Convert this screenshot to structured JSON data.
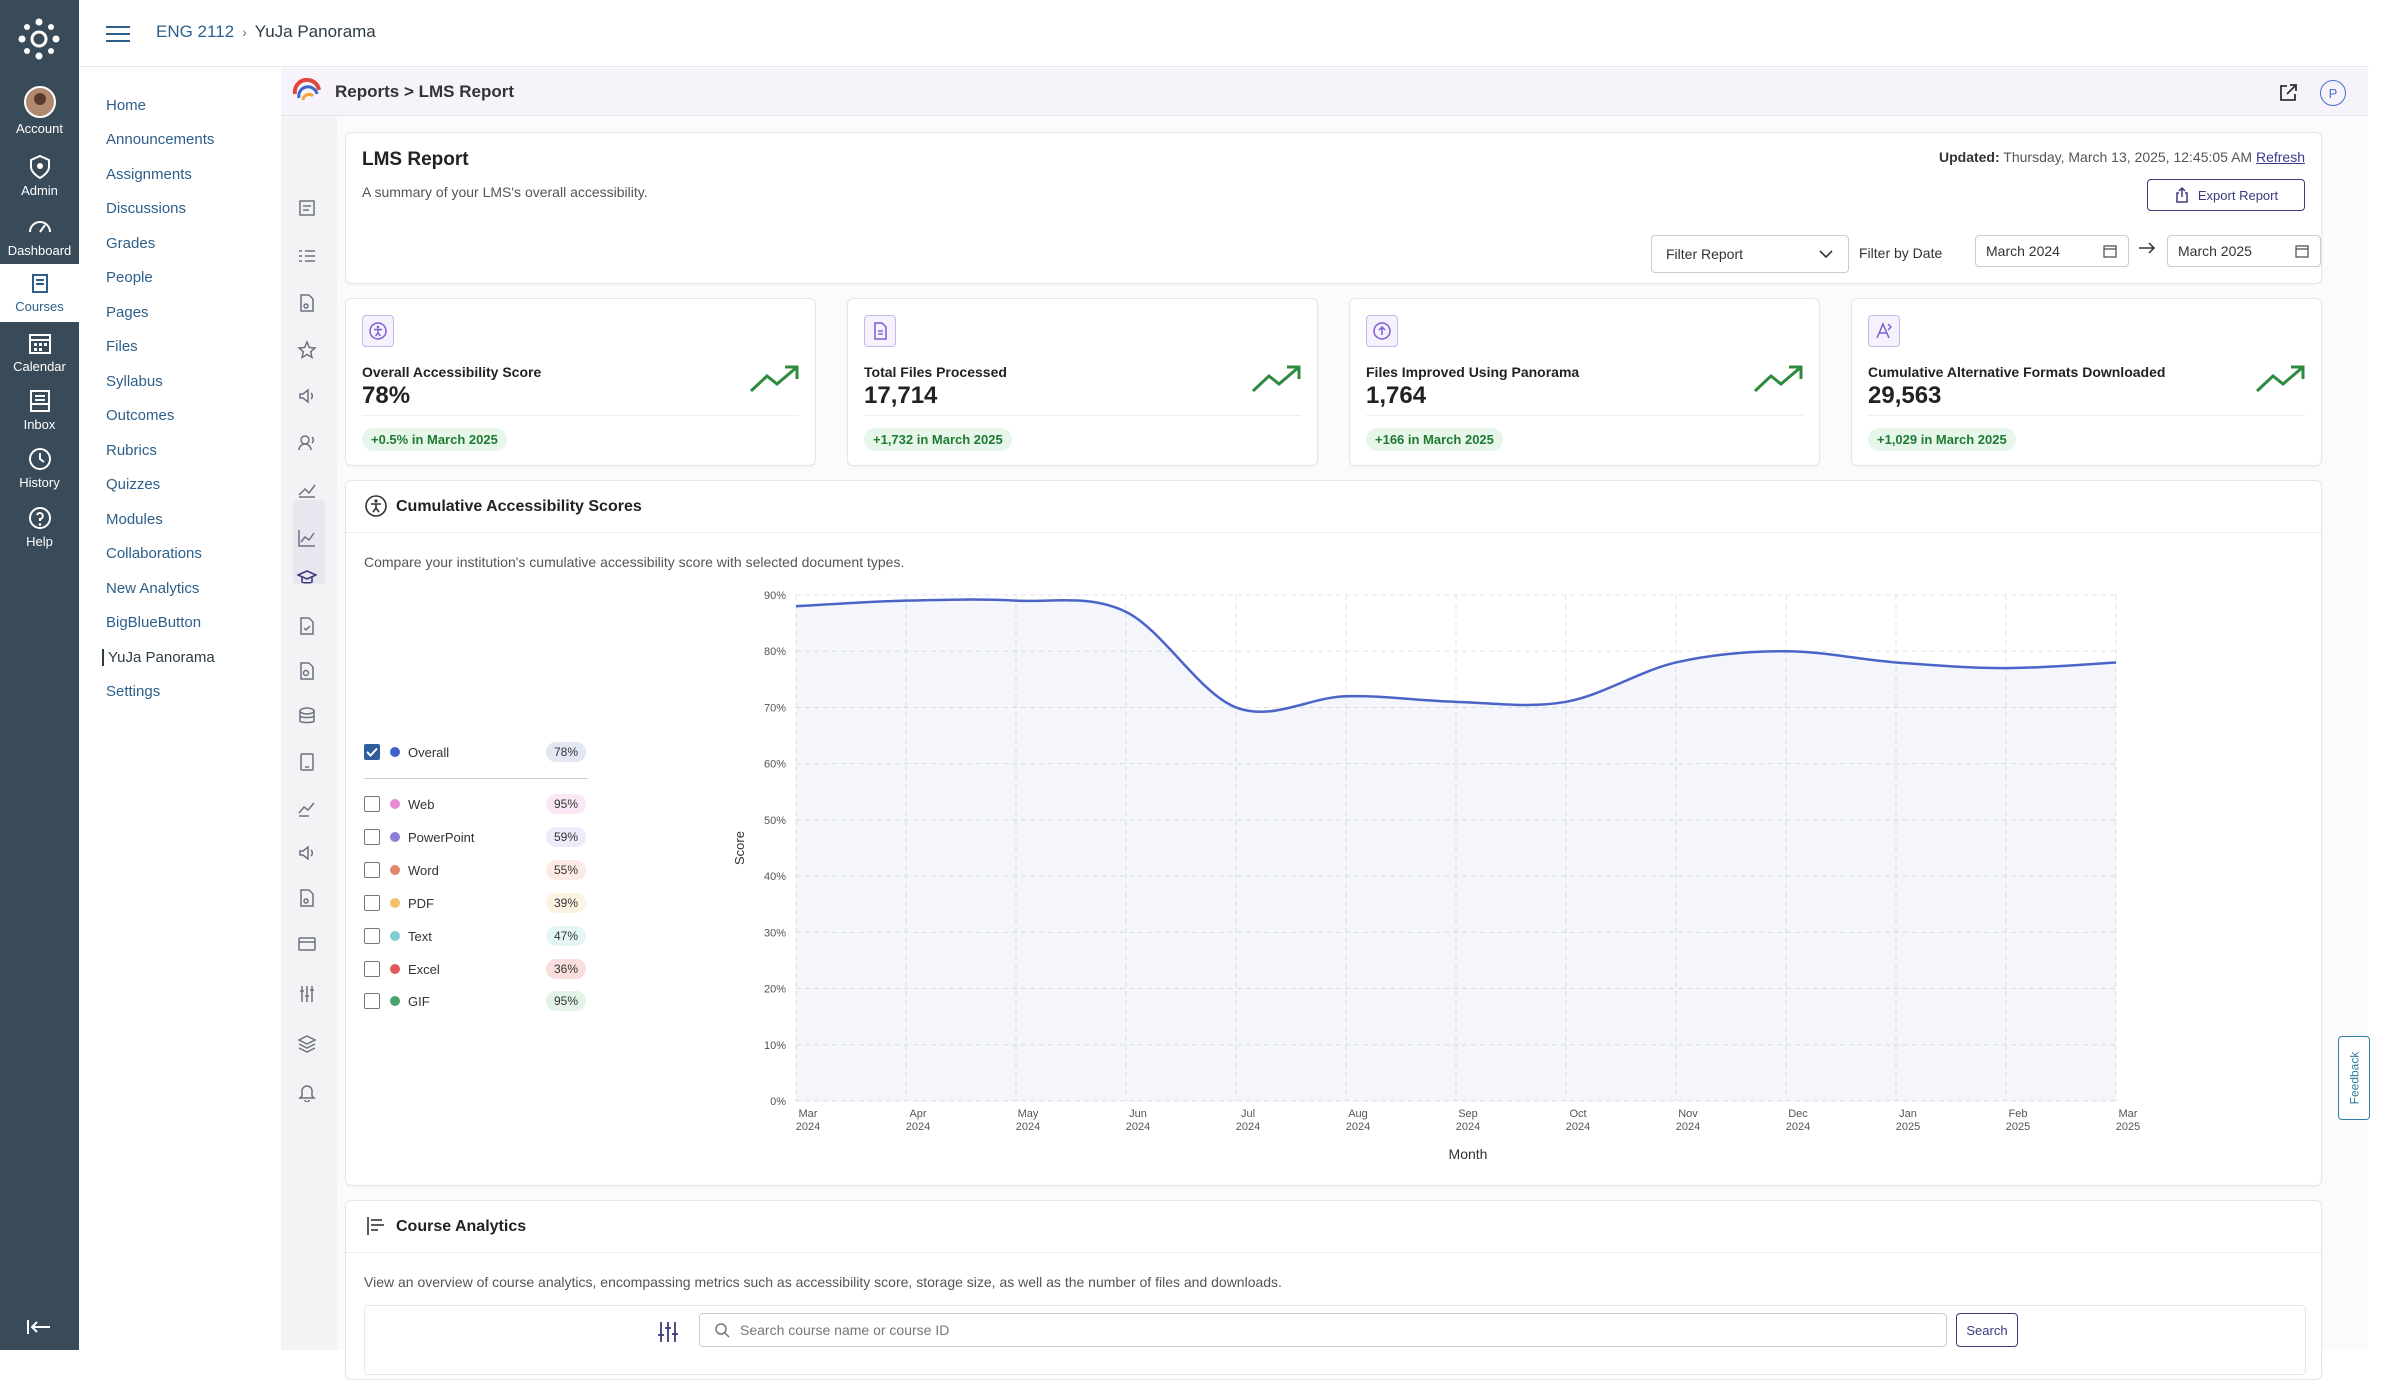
{
  "global_nav": {
    "items": [
      {
        "label": "Account",
        "icon": "avatar"
      },
      {
        "label": "Admin",
        "icon": "shield-icon"
      },
      {
        "label": "Dashboard",
        "icon": "speedometer-icon"
      },
      {
        "label": "Courses",
        "icon": "book-icon"
      },
      {
        "label": "Calendar",
        "icon": "calendar-icon"
      },
      {
        "label": "Inbox",
        "icon": "inbox-icon"
      },
      {
        "label": "History",
        "icon": "clock-icon"
      },
      {
        "label": "Help",
        "icon": "question-icon"
      }
    ],
    "active": "Courses"
  },
  "breadcrumb": {
    "course": "ENG 2112",
    "page": "YuJa Panorama"
  },
  "course_nav": {
    "items": [
      "Home",
      "Announcements",
      "Assignments",
      "Discussions",
      "Grades",
      "People",
      "Pages",
      "Files",
      "Syllabus",
      "Outcomes",
      "Rubrics",
      "Quizzes",
      "Modules",
      "Collaborations",
      "New Analytics",
      "BigBlueButton",
      "YuJa Panorama",
      "Settings"
    ],
    "active": "YuJa Panorama"
  },
  "tool": {
    "breadcrumb": "Reports > LMS Report",
    "profile_initial": "P"
  },
  "report": {
    "title": "LMS Report",
    "subtitle": "A summary of your LMS's overall accessibility.",
    "updated_label": "Updated:",
    "updated_value": "Thursday, March 13, 2025, 12:45:05 AM",
    "refresh": "Refresh",
    "export": "Export Report",
    "filter_placeholder": "Filter Report",
    "filter_by_date": "Filter by Date",
    "date_from": "March 2024",
    "date_to": "March 2025"
  },
  "kpis": [
    {
      "label": "Overall Accessibility Score",
      "value": "78%",
      "delta": "+0.5% in March 2025",
      "icon": "accessibility-icon"
    },
    {
      "label": "Total Files Processed",
      "value": "17,714",
      "delta": "+1,732 in March 2025",
      "icon": "file-icon"
    },
    {
      "label": "Files Improved Using Panorama",
      "value": "1,764",
      "delta": "+166 in March 2025",
      "icon": "upload-circle-icon"
    },
    {
      "label": "Cumulative Alternative Formats Downloaded",
      "value": "29,563",
      "delta": "+1,029 in March 2025",
      "icon": "alt-format-icon"
    }
  ],
  "cumulative": {
    "title": "Cumulative Accessibility Scores",
    "description": "Compare your institution's cumulative accessibility score with selected document types.",
    "legend": [
      {
        "name": "Overall",
        "value": "78%",
        "checked": true,
        "color": "#3f63c8",
        "bg": "#e3e7f4"
      },
      {
        "name": "Web",
        "value": "95%",
        "checked": false,
        "color": "#e58bd3",
        "bg": "#fbe8f6"
      },
      {
        "name": "PowerPoint",
        "value": "59%",
        "checked": false,
        "color": "#8a7fd6",
        "bg": "#ecebf9"
      },
      {
        "name": "Word",
        "value": "55%",
        "checked": false,
        "color": "#e0866a",
        "bg": "#fbebe4"
      },
      {
        "name": "PDF",
        "value": "39%",
        "checked": false,
        "color": "#f2c16a",
        "bg": "#fdf3e2"
      },
      {
        "name": "Text",
        "value": "47%",
        "checked": false,
        "color": "#7ccfd0",
        "bg": "#e5f6f6"
      },
      {
        "name": "Excel",
        "value": "36%",
        "checked": false,
        "color": "#e05a5a",
        "bg": "#fadede"
      },
      {
        "name": "GIF",
        "value": "95%",
        "checked": false,
        "color": "#4aa26b",
        "bg": "#e3f3e8"
      }
    ]
  },
  "chart_data": {
    "type": "area",
    "x": [
      "Mar 2024",
      "Apr 2024",
      "May 2024",
      "Jun 2024",
      "Jul 2024",
      "Aug 2024",
      "Sep 2024",
      "Oct 2024",
      "Nov 2024",
      "Dec 2024",
      "Jan 2025",
      "Feb 2025",
      "Mar 2025"
    ],
    "series": [
      {
        "name": "Overall",
        "values": [
          88,
          89,
          89,
          87,
          70,
          72,
          71,
          71,
          78,
          80,
          78,
          77,
          78
        ],
        "color": "#4a64c8"
      }
    ],
    "xlabel": "Month",
    "ylabel": "Score",
    "ylim": [
      0,
      90
    ],
    "yticks": [
      "0%",
      "10%",
      "20%",
      "30%",
      "40%",
      "50%",
      "60%",
      "70%",
      "80%",
      "90%"
    ],
    "grid": true
  },
  "course_analytics": {
    "title": "Course Analytics",
    "description": "View an overview of course analytics, encompassing metrics such as accessibility score, storage size, as well as the number of files and downloads.",
    "search_placeholder": "Search course name or course ID",
    "search_button": "Search"
  },
  "feedback": "Feedback"
}
